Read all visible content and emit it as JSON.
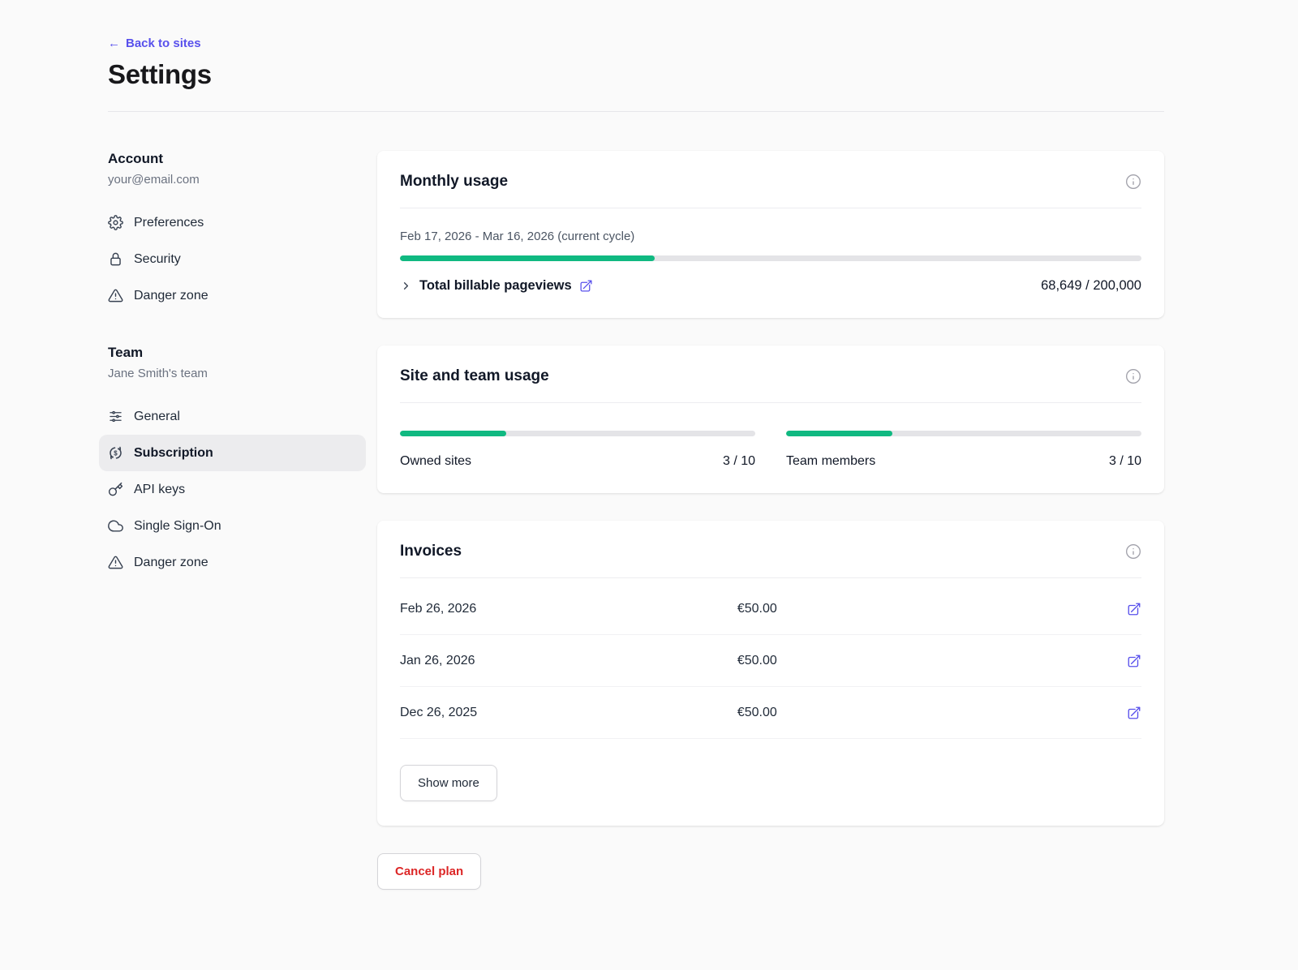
{
  "header": {
    "back_arrow": "←",
    "back_label": "Back to sites",
    "title": "Settings"
  },
  "sidebar": {
    "account": {
      "heading": "Account",
      "subtitle": "your@email.com",
      "items": [
        {
          "label": "Preferences",
          "icon": "gear-icon"
        },
        {
          "label": "Security",
          "icon": "lock-icon"
        },
        {
          "label": "Danger zone",
          "icon": "warning-icon"
        }
      ]
    },
    "team": {
      "heading": "Team",
      "subtitle": "Jane Smith's team",
      "items": [
        {
          "label": "General",
          "icon": "sliders-icon"
        },
        {
          "label": "Subscription",
          "icon": "currency-cycle-icon",
          "active": true
        },
        {
          "label": "API keys",
          "icon": "key-icon"
        },
        {
          "label": "Single Sign-On",
          "icon": "cloud-icon"
        },
        {
          "label": "Danger zone",
          "icon": "warning-icon"
        }
      ]
    }
  },
  "monthly_usage": {
    "title": "Monthly usage",
    "cycle_label": "Feb 17, 2026 - Mar 16, 2026 (current cycle)",
    "progress_percent": 34.3,
    "row_label": "Total billable pageviews",
    "usage_value": "68,649 / 200,000"
  },
  "site_team_usage": {
    "title": "Site and team usage",
    "meters": [
      {
        "label": "Owned sites",
        "value": "3 / 10",
        "percent": 30
      },
      {
        "label": "Team members",
        "value": "3 / 10",
        "percent": 30
      }
    ]
  },
  "invoices": {
    "title": "Invoices",
    "rows": [
      {
        "date": "Feb 26, 2026",
        "amount": "€50.00"
      },
      {
        "date": "Jan 26, 2026",
        "amount": "€50.00"
      },
      {
        "date": "Dec 26, 2025",
        "amount": "€50.00"
      }
    ],
    "show_more_label": "Show more"
  },
  "footer": {
    "cancel_plan_label": "Cancel plan"
  },
  "colors": {
    "accent_indigo": "#5850ec",
    "progress_green": "#10b981",
    "danger_red": "#dc2626",
    "page_background": "#fafafa"
  }
}
